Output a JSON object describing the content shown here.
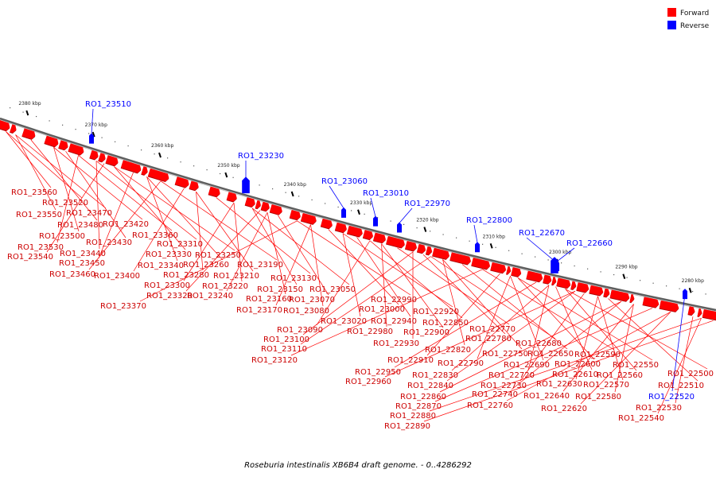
{
  "caption": "Roseburia intestinalis XB6B4 draft genome. - 0..4286292",
  "legend": [
    {
      "label": "Forward",
      "color": "#ff0000"
    },
    {
      "label": "Reverse",
      "color": "#0000ff"
    }
  ],
  "colors": {
    "forward": "#ff0000",
    "reverse": "#0000ff",
    "backbone": "#7a7a7a",
    "forward_shadow": "#b00000",
    "reverse_shadow": "#0000aa"
  },
  "ruler": [
    {
      "label": "2380 kbp",
      "pos_kbp": 2380
    },
    {
      "label": "2370 kbp",
      "pos_kbp": 2370
    },
    {
      "label": "2360 kbp",
      "pos_kbp": 2360
    },
    {
      "label": "2350 kbp",
      "pos_kbp": 2350
    },
    {
      "label": "2340 kbp",
      "pos_kbp": 2340
    },
    {
      "label": "2330 kbp",
      "pos_kbp": 2330
    },
    {
      "label": "2320 kbp",
      "pos_kbp": 2320
    },
    {
      "label": "2310 kbp",
      "pos_kbp": 2310
    },
    {
      "label": "2300 kbp",
      "pos_kbp": 2300
    },
    {
      "label": "2290 kbp",
      "pos_kbp": 2290
    },
    {
      "label": "2280 kbp",
      "pos_kbp": 2280
    }
  ],
  "reverse_genes": [
    {
      "label": "RO1_23510"
    },
    {
      "label": "RO1_23230"
    },
    {
      "label": "RO1_23060"
    },
    {
      "label": "RO1_23010"
    },
    {
      "label": "RO1_22970"
    },
    {
      "label": "RO1_22800"
    },
    {
      "label": "RO1_22670"
    },
    {
      "label": "RO1_22660"
    },
    {
      "label": "RO1_22520"
    }
  ],
  "forward_labels": [
    "RO1_23560",
    "RO1_23520",
    "RO1_23550",
    "RO1_23470",
    "RO1_23480",
    "RO1_23420",
    "RO1_23500",
    "RO1_23430",
    "RO1_23360",
    "RO1_23530",
    "RO1_23310",
    "RO1_23440",
    "RO1_23540",
    "RO1_23330",
    "RO1_23250",
    "RO1_23450",
    "RO1_23340",
    "RO1_23260",
    "RO1_23190",
    "RO1_23460",
    "RO1_23400",
    "RO1_23280",
    "RO1_23210",
    "RO1_23130",
    "RO1_23300",
    "RO1_23220",
    "RO1_23150",
    "RO1_23050",
    "RO1_23320",
    "RO1_23240",
    "RO1_23160",
    "RO1_23070",
    "RO1_22990",
    "RO1_23370",
    "RO1_23170",
    "RO1_23080",
    "RO1_23000",
    "RO1_22920",
    "RO1_23020",
    "RO1_22940",
    "RO1_22850",
    "RO1_23090",
    "RO1_22980",
    "RO1_22900",
    "RO1_22770",
    "RO1_23100",
    "RO1_22930",
    "RO1_22780",
    "RO1_22680",
    "RO1_23110",
    "RO1_22820",
    "RO1_22750",
    "RO1_22650",
    "RO1_22590",
    "RO1_23120",
    "RO1_22910",
    "RO1_22790",
    "RO1_22690",
    "RO1_22600",
    "RO1_22550",
    "RO1_22950",
    "RO1_22830",
    "RO1_22720",
    "RO1_22610",
    "RO1_22560",
    "RO1_22500",
    "RO1_22960",
    "RO1_22840",
    "RO1_22730",
    "RO1_22630",
    "RO1_22570",
    "RO1_22510",
    "RO1_22860",
    "RO1_22740",
    "RO1_22640",
    "RO1_22580",
    "RO1_22870",
    "RO1_22760",
    "RO1_22620",
    "RO1_22530",
    "RO1_22880",
    "RO1_22540",
    "RO1_22890"
  ]
}
